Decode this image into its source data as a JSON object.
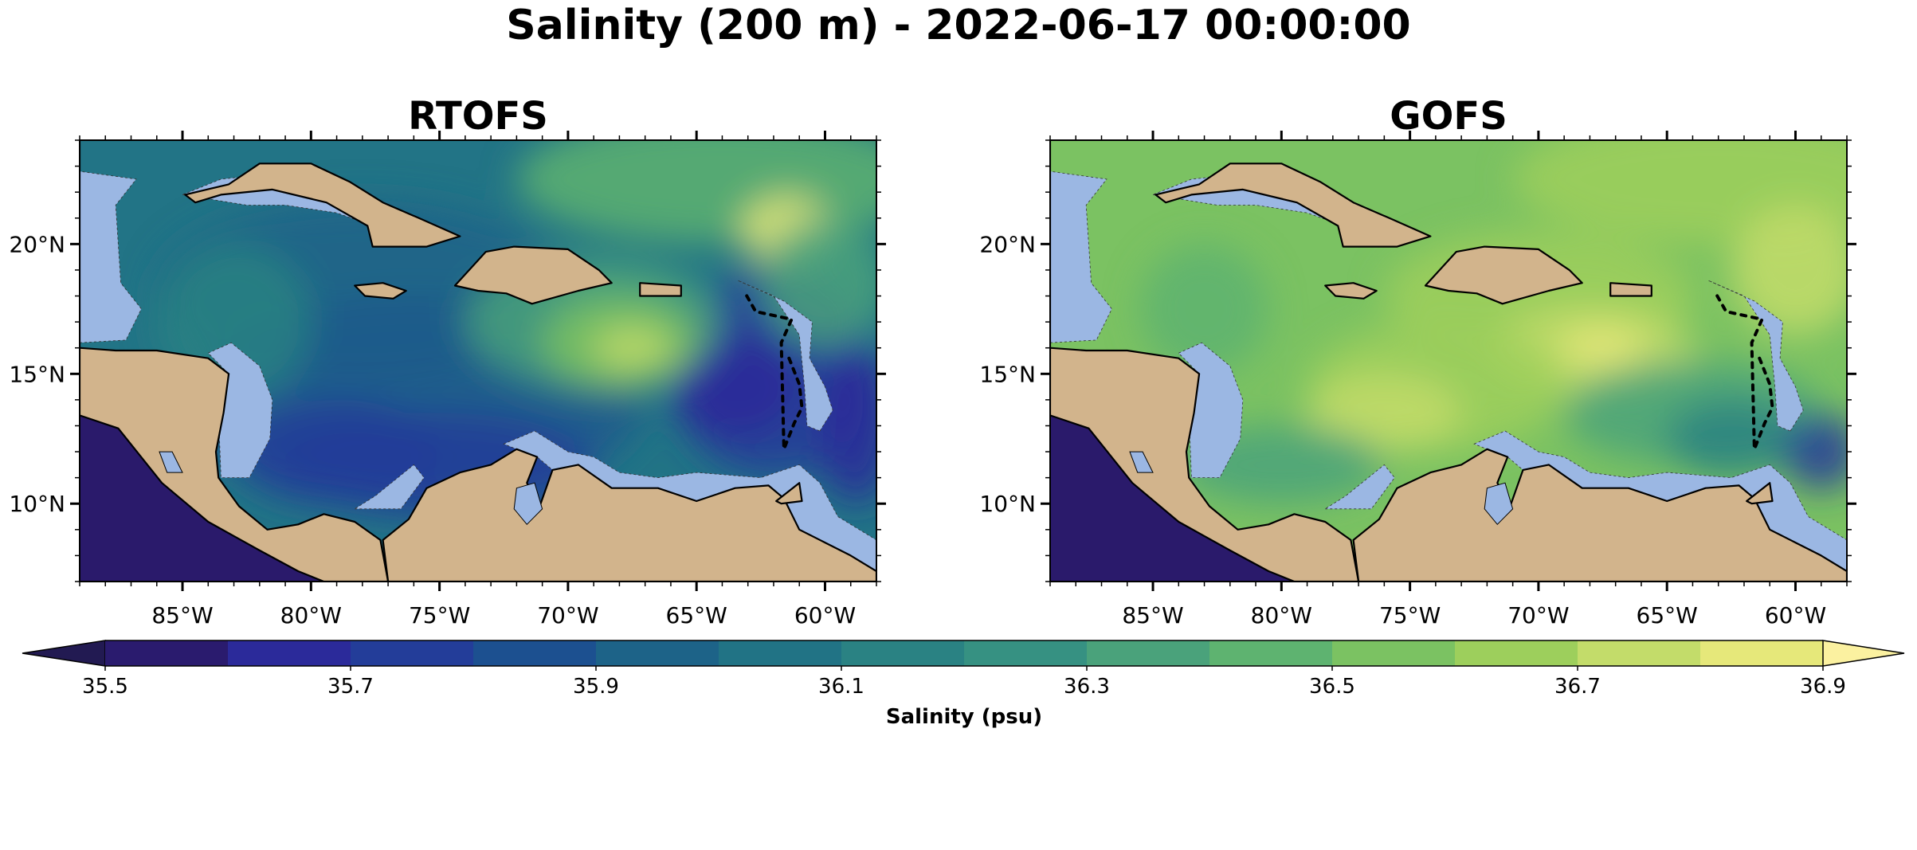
{
  "title": "Salinity (200 m) - 2022-06-17 00:00:00",
  "panels": [
    {
      "name": "RTOFS",
      "key": "rtofs"
    },
    {
      "name": "GOFS",
      "key": "gofs"
    }
  ],
  "map": {
    "lon_range": [
      -89,
      -58
    ],
    "lat_range": [
      7,
      24
    ],
    "lon_ticks": [
      {
        "value": -85,
        "label": "85°W"
      },
      {
        "value": -80,
        "label": "80°W"
      },
      {
        "value": -75,
        "label": "75°W"
      },
      {
        "value": -70,
        "label": "70°W"
      },
      {
        "value": -65,
        "label": "65°W"
      },
      {
        "value": -60,
        "label": "60°W"
      }
    ],
    "lat_ticks": [
      {
        "value": 10,
        "label": "10°N"
      },
      {
        "value": 15,
        "label": "15°N"
      },
      {
        "value": 20,
        "label": "20°N"
      }
    ],
    "land_color": "#d2b48c",
    "shelf_color": "#9bb7e3",
    "pacific_color": "#2a1a6b"
  },
  "colorbar": {
    "label": "Salinity (psu)",
    "min": 35.5,
    "max": 36.9,
    "step": 0.1,
    "extend": "both",
    "tick_labels": [
      "35.5",
      "35.7",
      "35.9",
      "36.1",
      "36.3",
      "36.5",
      "36.7",
      "36.9"
    ],
    "colors": [
      "#2a1b6e",
      "#2b2a9a",
      "#233d99",
      "#1c5090",
      "#1d6388",
      "#217385",
      "#2a8283",
      "#369182",
      "#4aa27b",
      "#5eb370",
      "#7bc262",
      "#9dcf5c",
      "#c3dc6a",
      "#e6e87a"
    ],
    "under_color": "#221a52",
    "over_color": "#fbf1a0"
  }
}
